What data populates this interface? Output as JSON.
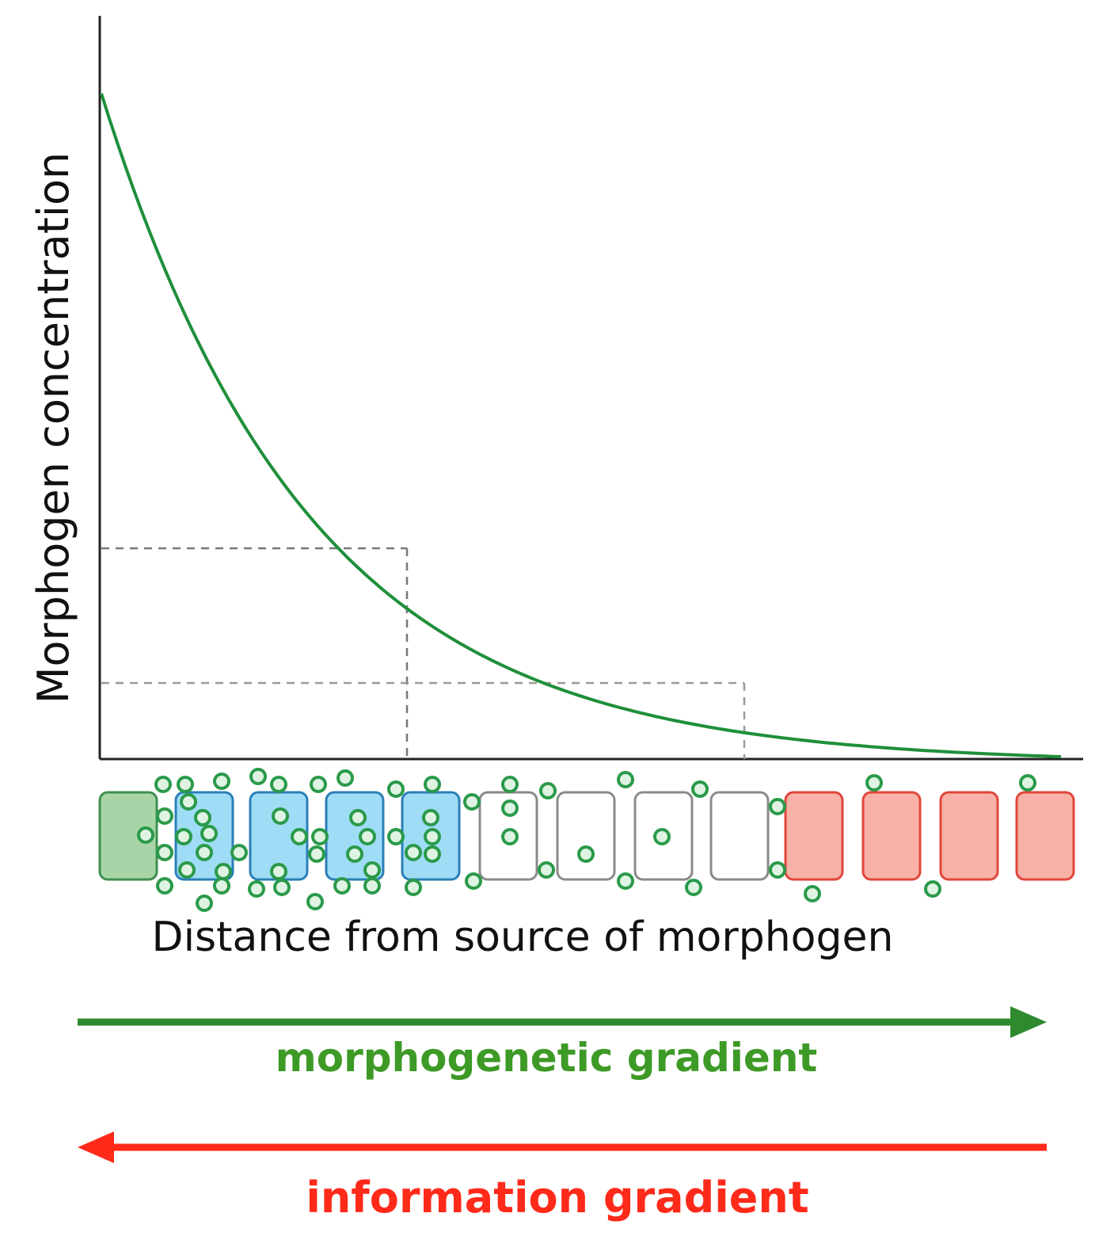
{
  "labels": {
    "y_axis": "Morphogen concentration",
    "x_axis": "Distance from source of morphogen",
    "forward_arrow": "morphogenetic gradient",
    "backward_arrow": "information gradient"
  },
  "colors": {
    "curve": "#1f8f3a",
    "source_cell": "#a8d5a8",
    "source_cell_stroke": "#3f8f4f",
    "blue_cell": "#9fdcf5",
    "blue_cell_stroke": "#2b7fb8",
    "white_cell": "#ffffff",
    "white_cell_stroke": "#8a8a8a",
    "red_cell": "#f8b1a6",
    "red_cell_stroke": "#e0463b",
    "molecule": "#2a9a4a",
    "forward_arrow": "#2f8a2f",
    "backward_arrow": "#ff2a1a",
    "forward_text": "#3d9a26",
    "backward_text": "#ff2a1a",
    "axis": "#222222",
    "dash": "#777777"
  },
  "cells": {
    "sequence": [
      "source",
      "blue",
      "blue",
      "blue",
      "blue",
      "white",
      "white",
      "white",
      "white",
      "red",
      "red",
      "red",
      "red"
    ]
  }
}
